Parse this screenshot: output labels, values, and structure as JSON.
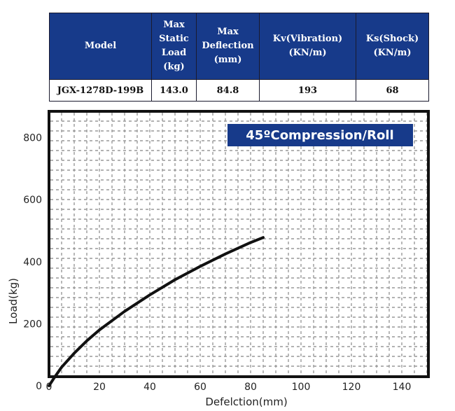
{
  "table": {
    "headers": [
      "Model",
      "Max\nStatic\nLoad\n(kg)",
      "Max\nDeflection\n(mm)",
      "Kv(Vibration)\n(KN/m)",
      "Ks(Shock)\n(KN/m)"
    ],
    "row": [
      "JGX-1278D-199B",
      "143.0",
      "84.8",
      "193",
      "68"
    ]
  },
  "chart_data": {
    "type": "line",
    "title": "45ºCompression/Roll",
    "xlabel": "Defelction(mm)",
    "ylabel": "Load(kg)",
    "xlim": [
      0,
      150
    ],
    "ylim": [
      0,
      880
    ],
    "xticks": [
      0,
      20,
      40,
      60,
      80,
      100,
      120,
      140
    ],
    "yticks": [
      0,
      200,
      400,
      600,
      800
    ],
    "grid": true,
    "series": [
      {
        "x": [
          0,
          2,
          5,
          10,
          15,
          20,
          30,
          40,
          50,
          60,
          70,
          80,
          85
        ],
        "y": [
          0,
          25,
          60,
          105,
          145,
          180,
          240,
          293,
          342,
          385,
          425,
          462,
          478
        ]
      }
    ]
  },
  "colors": {
    "header_bg": "#173a8a",
    "line": "#111111",
    "title_bg": "#173a8a",
    "grid": "#999999"
  }
}
